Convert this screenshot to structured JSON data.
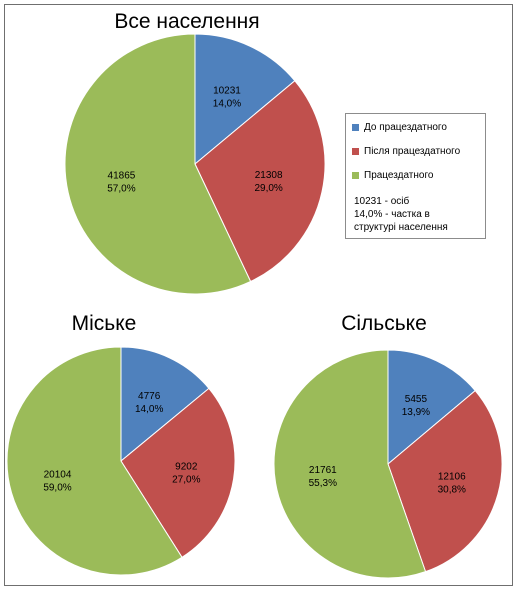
{
  "colors": {
    "before_working_age": "#4f81bd",
    "after_working_age": "#c0504d",
    "working_age": "#9bbb59",
    "border": "#6f6f6f"
  },
  "legend": {
    "items": [
      {
        "label": "До працездатного",
        "color": "#4f81bd"
      },
      {
        "label": "Після працездатного",
        "color": "#c0504d"
      },
      {
        "label": "Працездатного",
        "color": "#9bbb59"
      }
    ],
    "note": "10231 - осіб\n14,0% - частка в\nструктурі населення"
  },
  "chart_data": [
    {
      "type": "pie",
      "title": "Все населення",
      "slices": [
        {
          "category": "До працездатного",
          "value": 10231,
          "share": 14.0,
          "value_label": "10231",
          "share_label": "14,0%"
        },
        {
          "category": "Після працездатного",
          "value": 21308,
          "share": 29.0,
          "value_label": "21308",
          "share_label": "29,0%"
        },
        {
          "category": "Працездатного",
          "value": 41865,
          "share": 57.0,
          "value_label": "41865",
          "share_label": "57,0%"
        }
      ]
    },
    {
      "type": "pie",
      "title": "Міське",
      "slices": [
        {
          "category": "До працездатного",
          "value": 4776,
          "share": 14.0,
          "value_label": "4776",
          "share_label": "14,0%"
        },
        {
          "category": "Після працездатного",
          "value": 9202,
          "share": 27.0,
          "value_label": "9202",
          "share_label": "27,0%"
        },
        {
          "category": "Працездатного",
          "value": 20104,
          "share": 59.0,
          "value_label": "20104",
          "share_label": "59,0%"
        }
      ]
    },
    {
      "type": "pie",
      "title": "Сільське",
      "slices": [
        {
          "category": "До працездатного",
          "value": 5455,
          "share": 13.9,
          "value_label": "5455",
          "share_label": "13,9%"
        },
        {
          "category": "Після працездатного",
          "value": 12106,
          "share": 30.8,
          "value_label": "12106",
          "share_label": "30,8%"
        },
        {
          "category": "Працездатного",
          "value": 21761,
          "share": 55.3,
          "value_label": "21761",
          "share_label": "55,3%"
        }
      ]
    }
  ]
}
